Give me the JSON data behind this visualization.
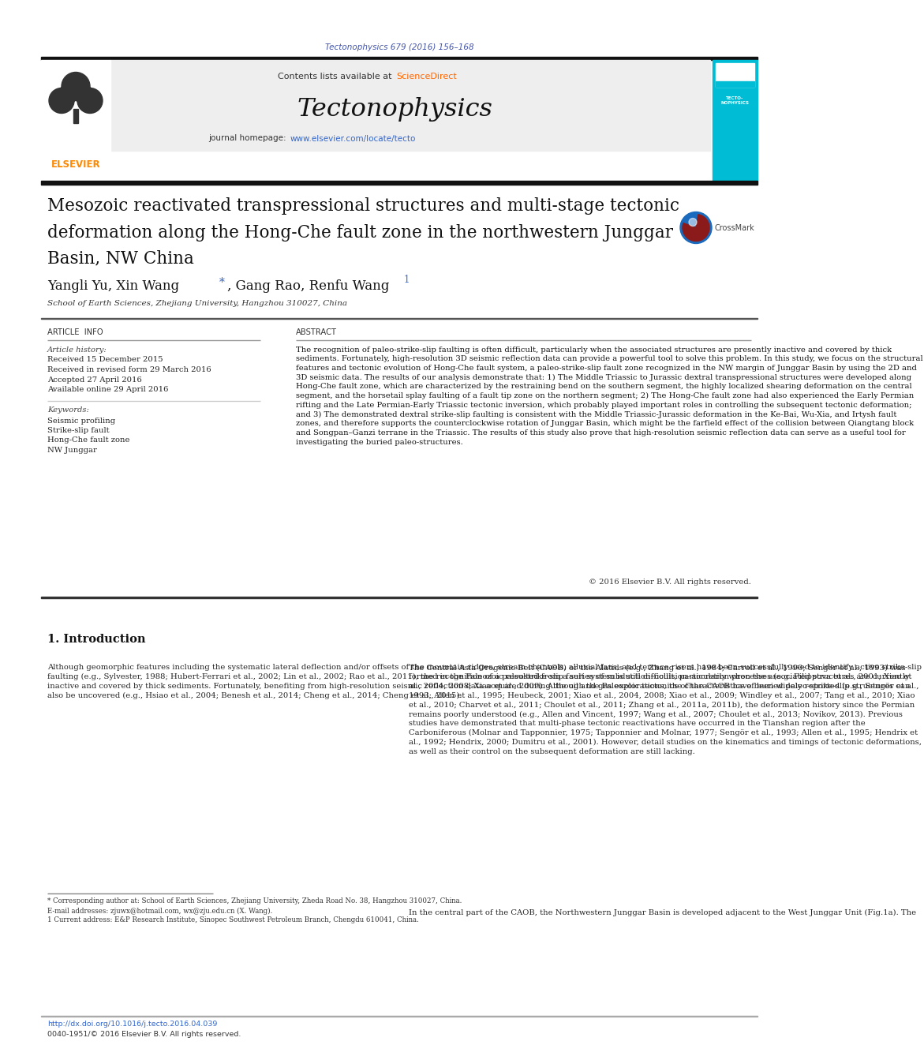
{
  "page_width": 9.92,
  "page_height": 13.23,
  "bg_color": "#ffffff",
  "top_citation": "Tectonophysics 679 (2016) 156–168",
  "top_citation_color": "#4455aa",
  "header_bg": "#eeeeee",
  "sciencedirect_color": "#ff6600",
  "journal_name": "Tectonophysics",
  "journal_url": "www.elsevier.com/locate/tecto",
  "journal_url_color": "#3366cc",
  "tecto_box_color": "#00bcd4",
  "paper_title_line1": "Mesozoic reactivated transpressional structures and multi-stage tectonic",
  "paper_title_line2": "deformation along the Hong-Che fault zone in the northwestern Junggar",
  "paper_title_line3": "Basin, NW China",
  "affiliation": "School of Earth Sciences, Zhejiang University, Hangzhou 310027, China",
  "article_info_label": "ARTICLE  INFO",
  "abstract_label": "ABSTRACT",
  "history_label": "Article history:",
  "history_lines": [
    "Received 15 December 2015",
    "Received in revised form 29 March 2016",
    "Accepted 27 April 2016",
    "Available online 29 April 2016"
  ],
  "keywords_label": "Keywords:",
  "keywords_lines": [
    "Seismic profiling",
    "Strike-slip fault",
    "Hong-Che fault zone",
    "NW Junggar"
  ],
  "abstract_text": "The recognition of paleo-strike-slip faulting is often difficult, particularly when the associated structures are presently inactive and covered by thick sediments. Fortunately, high-resolution 3D seismic reflection data can provide a powerful tool to solve this problem. In this study, we focus on the structural features and tectonic evolution of Hong-Che fault system, a paleo-strike-slip fault zone recognized in the NW margin of Junggar Basin by using the 2D and 3D seismic data. The results of our analysis demonstrate that: 1) The Middle Triassic to Jurassic dextral transpressional structures were developed along Hong-Che fault zone, which are characterized by the restraining bend on the southern segment, the highly localized shearing deformation on the central segment, and the horsetail splay faulting of a fault tip zone on the northern segment; 2) The Hong-Che fault zone had also experienced the Early Permian rifting and the Late Permian-Early Triassic tectonic inversion, which probably played important roles in controlling the subsequent tectonic deformation; and 3) The demonstrated dextral strike-slip faulting is consistent with the Middle Triassic-Jurassic deformation in the Ke-Bai, Wu-Xia, and Irtysh fault zones, and therefore supports the counterclockwise rotation of Junggar Basin, which might be the farfield effect of the collision between Qiangtang block and Songpan–Ganzi terrane in the Triassic. The results of this study also prove that high-resolution seismic reflection data can serve as a useful tool for investigating the buried paleo-structures.",
  "copyright": "© 2016 Elsevier B.V. All rights reserved.",
  "section1_title": "1. Introduction",
  "intro_left": "Although geomorphic features including the systematic lateral deflection and/or offsets of the mountain ridges, stream channels, alluvial fans, and terrace risers have been successfully used to identify active strike-slip faulting (e.g., Sylvester, 1988; Hubert-Ferrari et al., 2002; Lin et al., 2002; Rao et al., 2011), the recognition of a paleostrike-slip fault system is still difficult, particularly when the associated structures are currently inactive and covered by thick sediments. Fortunately, benefiting from high-resolution seismic reflection data acquired during the oil and gas explorations, the characteristics of buried paleo-strike-slip structures can also be uncovered (e.g., Hsiao et al., 2004; Benesh et al., 2014; Cheng et al., 2014; Cheng et al., 2015).",
  "intro_right": "The Central Asia Orogenic Belt (CAOB) or the Alatids (e.g., Zhang et al., 1984; Carroll et al., 1990; Sengör et al., 1993) was formed in the Paleozoic resulted from a series of subduction–collision–accretion processes (e.g. Filippova et al., 2001; Xiao et al., 2004, 2008; Xiao et al., 2009). Although the Paleozoic tectonics of the CAOB have been widely reported (e.g., Sengör et al., 1993; Allen et al., 1995; Heubeck, 2001; Xiao et al., 2004, 2008; Xiao et al., 2009; Windley et al., 2007; Tang et al., 2010; Xiao et al., 2010; Charvet et al., 2011; Choulet et al., 2011; Zhang et al., 2011a, 2011b), the deformation history since the Permian remains poorly understood (e.g., Allen and Vincent, 1997; Wang et al., 2007; Choulet et al., 2013; Novikov, 2013). Previous studies have demonstrated that multi-phase tectonic reactivations have occurred in the Tianshan region after the Carboniferous (Molnar and Tapponnier, 1975; Tapponnier and Molnar, 1977; Sengör et al., 1993; Allen et al., 1995; Hendrix et al., 1992; Hendrix, 2000; Dumitru et al., 2001). However, detail studies on the kinematics and timings of tectonic deformations, as well as their control on the subsequent deformation are still lacking.",
  "intro_right2": "In the central part of the CAOB, the Northwestern Junggar Basin is developed adjacent to the West Junggar Unit (Fig.1a). The",
  "footnote1": "* Corresponding author at: School of Earth Sciences, Zhejiang University, Zheda Road No. 38, Hangzhou 310027, China.",
  "footnote2": "E-mail addresses: zjuwx@hotmail.com, wx@zju.edu.cn (X. Wang).",
  "footnote3": "1 Current address: E&P Research Institute, Sinopec Southwest Petroleum Branch, Chengdu 610041, China.",
  "doi_text": "http://dx.doi.org/10.1016/j.tecto.2016.04.039",
  "doi_color": "#3366cc",
  "issn_text": "0040-1951/© 2016 Elsevier B.V. All rights reserved."
}
